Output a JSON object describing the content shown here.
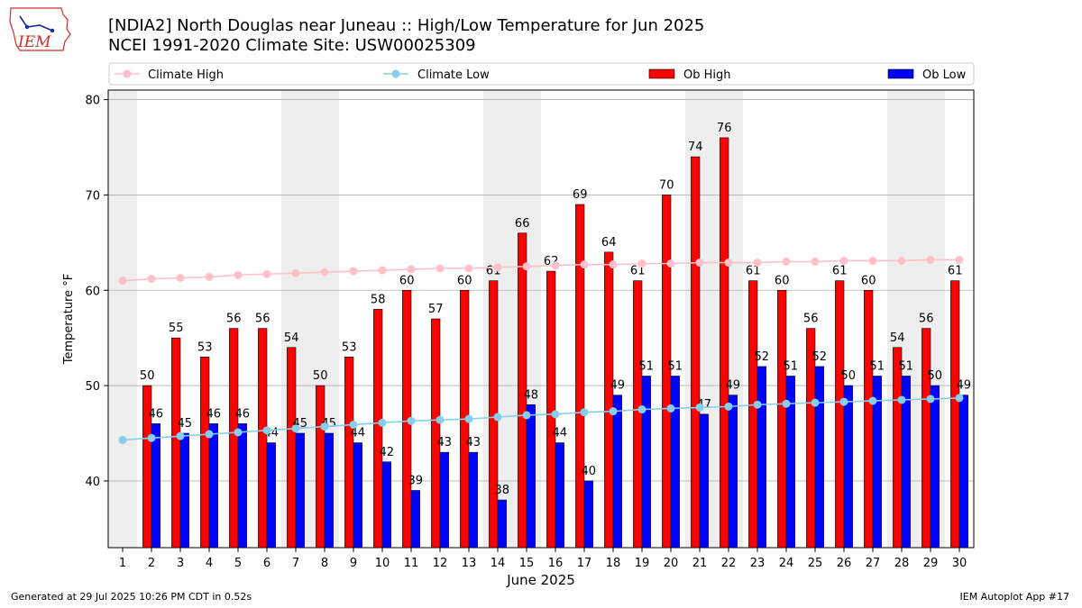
{
  "header": {
    "title_line1": "[NDIA2] North Douglas near Juneau :: High/Low Temperature for Jun 2025",
    "title_line2": "NCEI 1991-2020 Climate Site: USW00025309",
    "logo_text": "IEM"
  },
  "footer": {
    "generated": "Generated at 29 Jul 2025 10:26 PM CDT in 0.52s",
    "app": "IEM Autoplot App #17"
  },
  "colors": {
    "climate_high": "#FFC0CB",
    "climate_low": "#87CEEB",
    "ob_high": "#FF0000",
    "ob_low": "#0000FF",
    "weekend_band": "#EEEEEE",
    "grid": "#B0B0B0"
  },
  "chart_data": {
    "type": "bar",
    "xlabel": "June 2025",
    "ylabel": "Temperature °F",
    "xlim": [
      0.5,
      30.5
    ],
    "ylim": [
      33,
      81
    ],
    "yticks": [
      40,
      50,
      60,
      70,
      80
    ],
    "grid": "horizontal",
    "legend_placement": "top, above plot",
    "categories": [
      "1",
      "2",
      "3",
      "4",
      "5",
      "6",
      "7",
      "8",
      "9",
      "10",
      "11",
      "12",
      "13",
      "14",
      "15",
      "16",
      "17",
      "18",
      "19",
      "20",
      "21",
      "22",
      "23",
      "24",
      "25",
      "26",
      "27",
      "28",
      "29",
      "30"
    ],
    "shaded_weekend_days": [
      1,
      7,
      8,
      14,
      15,
      21,
      22,
      28,
      29
    ],
    "series": [
      {
        "name": "Climate High",
        "kind": "line",
        "values": [
          61.0,
          61.2,
          61.3,
          61.4,
          61.6,
          61.7,
          61.8,
          61.9,
          62.0,
          62.1,
          62.2,
          62.3,
          62.3,
          62.4,
          62.5,
          62.6,
          62.7,
          62.7,
          62.8,
          62.8,
          62.9,
          62.9,
          62.9,
          63.0,
          63.0,
          63.1,
          63.1,
          63.1,
          63.2,
          63.2
        ]
      },
      {
        "name": "Climate Low",
        "kind": "line",
        "values": [
          44.3,
          44.5,
          44.7,
          44.9,
          45.1,
          45.3,
          45.5,
          45.7,
          45.9,
          46.1,
          46.3,
          46.4,
          46.5,
          46.7,
          46.9,
          47.0,
          47.2,
          47.3,
          47.5,
          47.6,
          47.7,
          47.8,
          48.0,
          48.1,
          48.2,
          48.3,
          48.4,
          48.5,
          48.6,
          48.7
        ]
      },
      {
        "name": "Ob High",
        "kind": "bar",
        "values": [
          null,
          50,
          55,
          53,
          56,
          56,
          54,
          50,
          53,
          58,
          60,
          57,
          60,
          61,
          66,
          62,
          69,
          64,
          61,
          70,
          74,
          76,
          61,
          60,
          56,
          61,
          60,
          54,
          56,
          61
        ]
      },
      {
        "name": "Ob Low",
        "kind": "bar",
        "values": [
          null,
          46,
          45,
          46,
          46,
          44,
          45,
          45,
          44,
          42,
          39,
          43,
          43,
          38,
          48,
          44,
          40,
          49,
          51,
          51,
          47,
          49,
          52,
          51,
          52,
          50,
          51,
          51,
          50,
          49
        ]
      }
    ]
  }
}
